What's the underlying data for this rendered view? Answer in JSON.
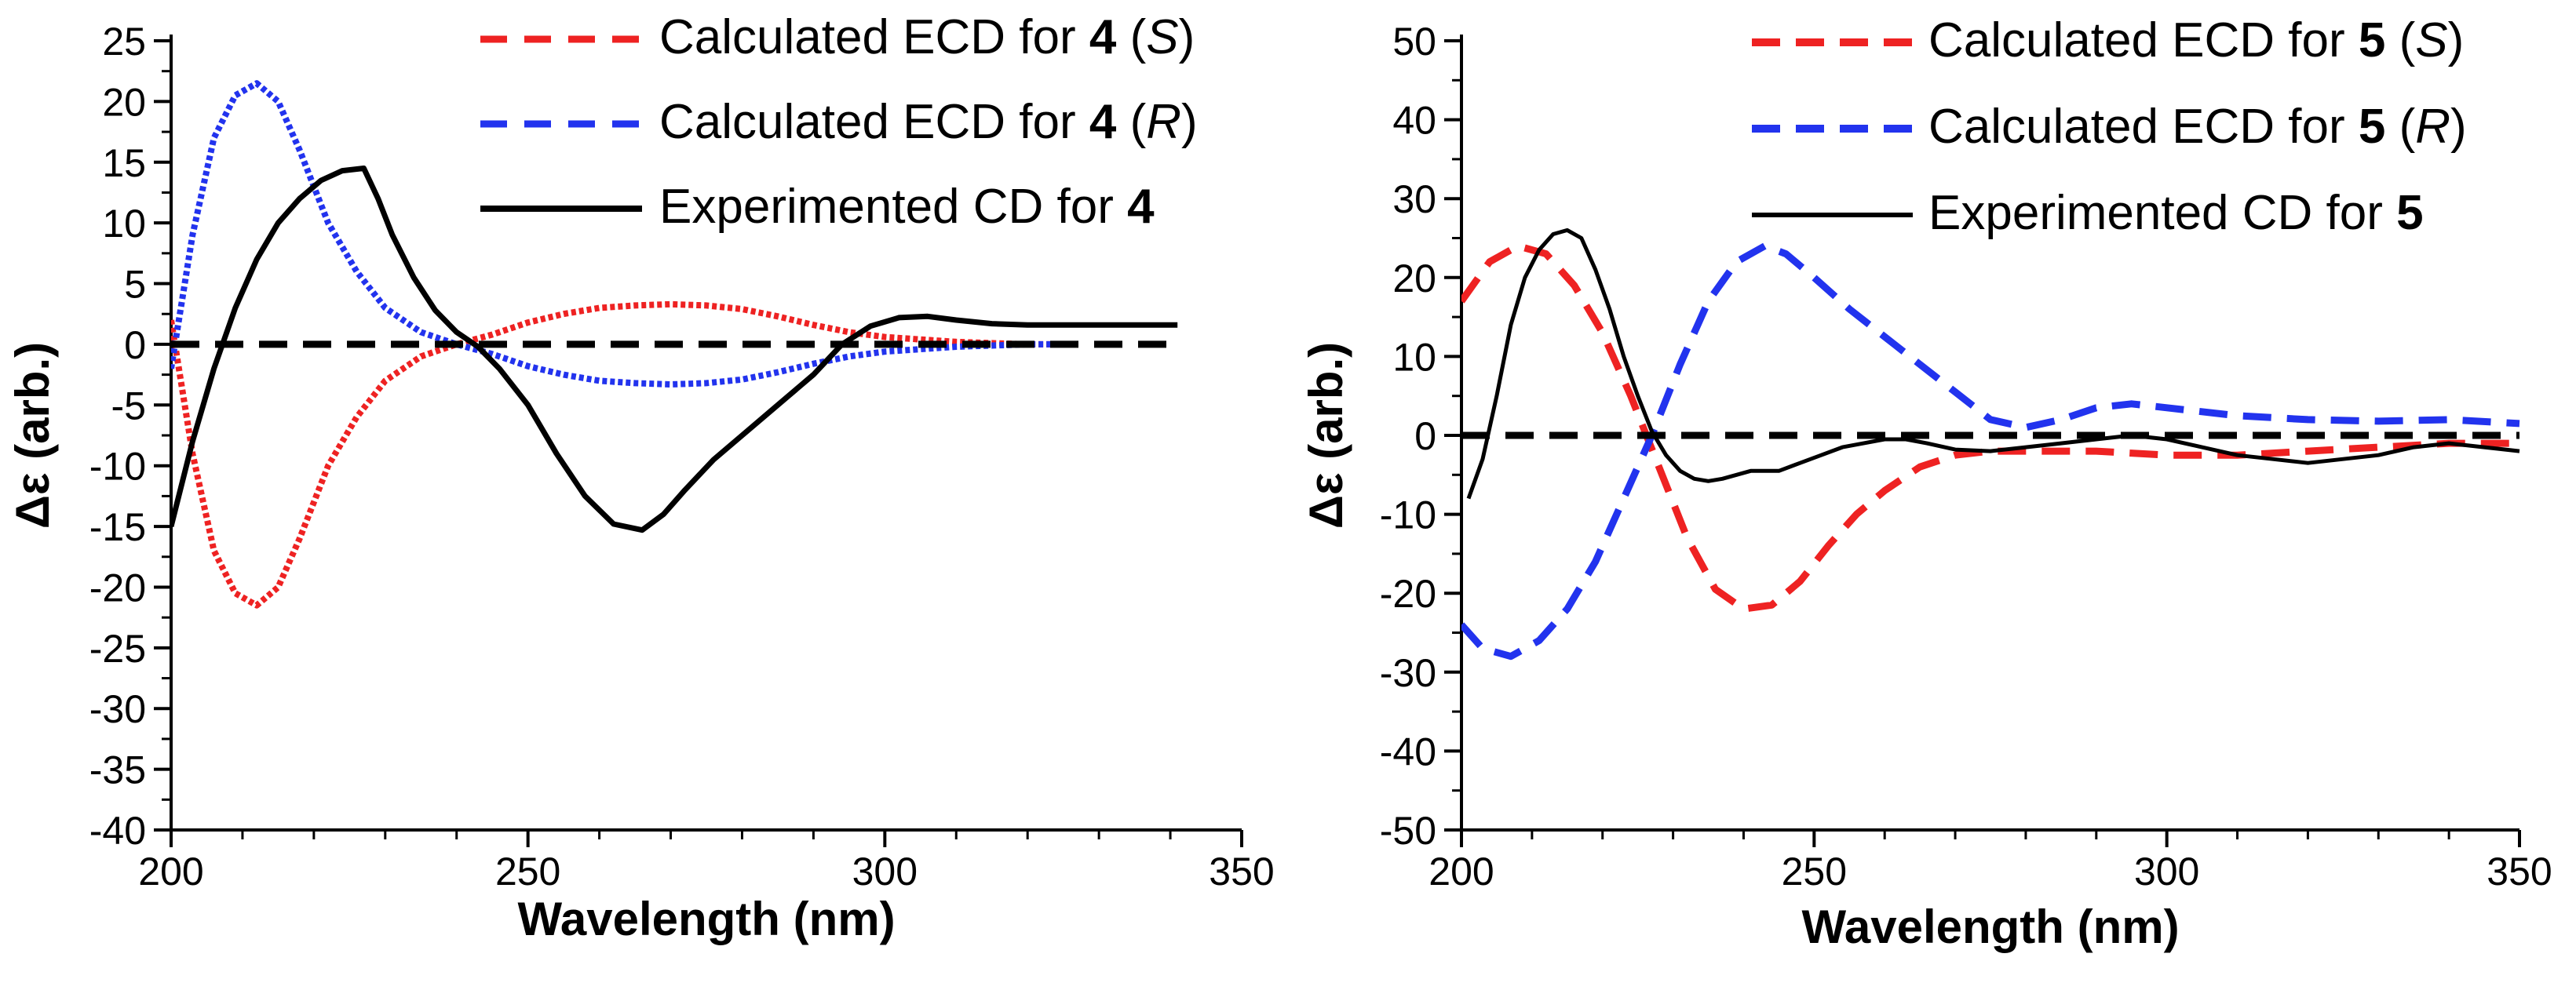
{
  "chart_data": [
    {
      "type": "line",
      "xlabel": "Wavelength (nm)",
      "ylabel": "Δε (arb.)",
      "xlim": [
        200,
        350
      ],
      "ylim": [
        -40,
        25
      ],
      "x_ticks": [
        200,
        250,
        300,
        350
      ],
      "y_ticks": [
        -40,
        -35,
        -30,
        -25,
        -20,
        -15,
        -10,
        -5,
        0,
        5,
        10,
        15,
        20,
        25
      ],
      "legend_position": "top-right",
      "series": [
        {
          "name": "Calculated ECD for 4 (S)",
          "legend": {
            "prefix": "Calculated ECD for ",
            "bold": "4",
            "suffix_open": " (",
            "italic": "S",
            "suffix_close": ")"
          },
          "color": "#ee2222",
          "style": "dotted",
          "x": [
            200,
            203,
            206,
            209,
            212,
            215,
            218,
            222,
            226,
            230,
            235,
            240,
            245,
            250,
            255,
            260,
            265,
            270,
            275,
            280,
            285,
            290,
            295,
            300,
            305,
            310,
            315,
            320,
            325
          ],
          "y": [
            2,
            -9,
            -17,
            -20.5,
            -21.5,
            -20,
            -16,
            -10,
            -6,
            -3,
            -1,
            0,
            0.8,
            1.8,
            2.5,
            3,
            3.2,
            3.3,
            3.2,
            2.9,
            2.3,
            1.6,
            1,
            0.6,
            0.4,
            0.2,
            0.1,
            0,
            0
          ]
        },
        {
          "name": "Calculated ECD for 4 (R)",
          "legend": {
            "prefix": "Calculated ECD for ",
            "bold": "4",
            "suffix_open": " (",
            "italic": "R",
            "suffix_close": ")"
          },
          "color": "#2233ee",
          "style": "dotted",
          "x": [
            200,
            203,
            206,
            209,
            212,
            215,
            218,
            222,
            226,
            230,
            235,
            240,
            245,
            250,
            255,
            260,
            265,
            270,
            275,
            280,
            285,
            290,
            295,
            300,
            305,
            310,
            315,
            320,
            325
          ],
          "y": [
            -2,
            9,
            17,
            20.5,
            21.5,
            20,
            16,
            10,
            6,
            3,
            1,
            0,
            -0.8,
            -1.8,
            -2.5,
            -3,
            -3.2,
            -3.3,
            -3.2,
            -2.9,
            -2.3,
            -1.6,
            -1,
            -0.6,
            -0.4,
            -0.2,
            -0.1,
            0,
            0
          ]
        },
        {
          "name": "Experimented CD for 4",
          "legend": {
            "prefix": "Experimented CD for ",
            "bold": "4",
            "suffix_open": "",
            "italic": "",
            "suffix_close": ""
          },
          "color": "#000000",
          "style": "solid",
          "x": [
            200,
            203,
            206,
            209,
            212,
            215,
            218,
            221,
            224,
            227,
            229,
            231,
            234,
            237,
            240,
            243,
            246,
            250,
            254,
            258,
            262,
            266,
            269,
            272,
            276,
            280,
            285,
            290,
            294,
            298,
            302,
            306,
            310,
            315,
            320,
            330,
            341
          ],
          "y": [
            -15,
            -8,
            -2,
            3,
            7,
            10,
            12,
            13.5,
            14.3,
            14.5,
            12,
            9,
            5.5,
            2.8,
            1,
            -0.2,
            -2,
            -5,
            -9,
            -12.5,
            -14.8,
            -15.3,
            -14,
            -12,
            -9.5,
            -7.5,
            -5,
            -2.5,
            0,
            1.5,
            2.2,
            2.3,
            2,
            1.7,
            1.6,
            1.6,
            1.6
          ]
        },
        {
          "name": "baseline",
          "legend": null,
          "color": "#000000",
          "style": "dashed",
          "x": [
            200,
            341
          ],
          "y": [
            0,
            0
          ]
        }
      ]
    },
    {
      "type": "line",
      "xlabel": "Wavelength (nm)",
      "ylabel": "Δε (arb.)",
      "xlim": [
        200,
        350
      ],
      "ylim": [
        -50,
        50
      ],
      "x_ticks": [
        200,
        250,
        300,
        350
      ],
      "y_ticks": [
        -50,
        -40,
        -30,
        -20,
        -10,
        0,
        10,
        20,
        30,
        40,
        50
      ],
      "legend_position": "top-right",
      "series": [
        {
          "name": "Calculated ECD for 5 (S)",
          "legend": {
            "prefix": "Calculated ECD for ",
            "bold": "5",
            "suffix_open": " (",
            "italic": "S",
            "suffix_close": ")"
          },
          "color": "#ee2222",
          "style": "dashed",
          "x": [
            200,
            204,
            208,
            212,
            216,
            220,
            224,
            228,
            232,
            236,
            240,
            244,
            248,
            252,
            256,
            260,
            265,
            270,
            275,
            280,
            290,
            300,
            310,
            320,
            330,
            340,
            350
          ],
          "y": [
            17,
            22,
            24,
            23,
            19,
            13,
            5,
            -4,
            -13,
            -19.5,
            -22,
            -21.5,
            -18.5,
            -14,
            -10,
            -7,
            -4,
            -2.5,
            -2,
            -2,
            -2,
            -2.5,
            -2.5,
            -2,
            -1.5,
            -1,
            -1
          ]
        },
        {
          "name": "Calculated ECD for 5 (R)",
          "legend": {
            "prefix": "Calculated ECD for ",
            "bold": "5",
            "suffix_open": " (",
            "italic": "R",
            "suffix_close": ")"
          },
          "color": "#2233ee",
          "style": "dashed",
          "x": [
            200,
            203,
            207,
            211,
            215,
            219,
            223,
            227,
            231,
            235,
            239,
            243,
            246,
            250,
            255,
            260,
            265,
            270,
            275,
            280,
            285,
            290,
            295,
            300,
            310,
            320,
            330,
            340,
            350
          ],
          "y": [
            -24,
            -27,
            -28,
            -26,
            -22,
            -16,
            -8,
            0,
            9,
            17,
            22,
            24,
            23,
            20,
            16,
            12.5,
            9,
            5.5,
            2,
            1,
            2,
            3.5,
            4,
            3.5,
            2.5,
            2,
            1.8,
            2,
            1.5
          ]
        },
        {
          "name": "Experimented CD for 5",
          "legend": {
            "prefix": "Experimented CD for ",
            "bold": "5",
            "suffix_open": "",
            "italic": "",
            "suffix_close": ""
          },
          "color": "#000000",
          "style": "solid-thin",
          "x": [
            201,
            203,
            205,
            207,
            209,
            211,
            213,
            215,
            217,
            219,
            221,
            223,
            225,
            227,
            229,
            231,
            233,
            235,
            237,
            239,
            241,
            243,
            245,
            248,
            251,
            254,
            257,
            260,
            263,
            266,
            270,
            275,
            280,
            285,
            290,
            295,
            300,
            305,
            310,
            315,
            320,
            325,
            330,
            335,
            340,
            345,
            350
          ],
          "y": [
            -8,
            -3,
            5,
            14,
            20,
            23.5,
            25.5,
            26,
            25,
            21,
            16,
            10,
            5,
            0.5,
            -2.5,
            -4.5,
            -5.5,
            -5.8,
            -5.5,
            -5,
            -4.5,
            -4.5,
            -4.5,
            -3.5,
            -2.5,
            -1.5,
            -1,
            -0.5,
            -0.5,
            -1,
            -1.8,
            -2,
            -1.5,
            -1,
            -0.5,
            0,
            -0.5,
            -1.5,
            -2.5,
            -3,
            -3.5,
            -3,
            -2.5,
            -1.5,
            -1,
            -1.5,
            -2
          ]
        },
        {
          "name": "baseline",
          "legend": null,
          "color": "#000000",
          "style": "dashed",
          "x": [
            200,
            350
          ],
          "y": [
            0,
            0
          ]
        }
      ]
    }
  ]
}
